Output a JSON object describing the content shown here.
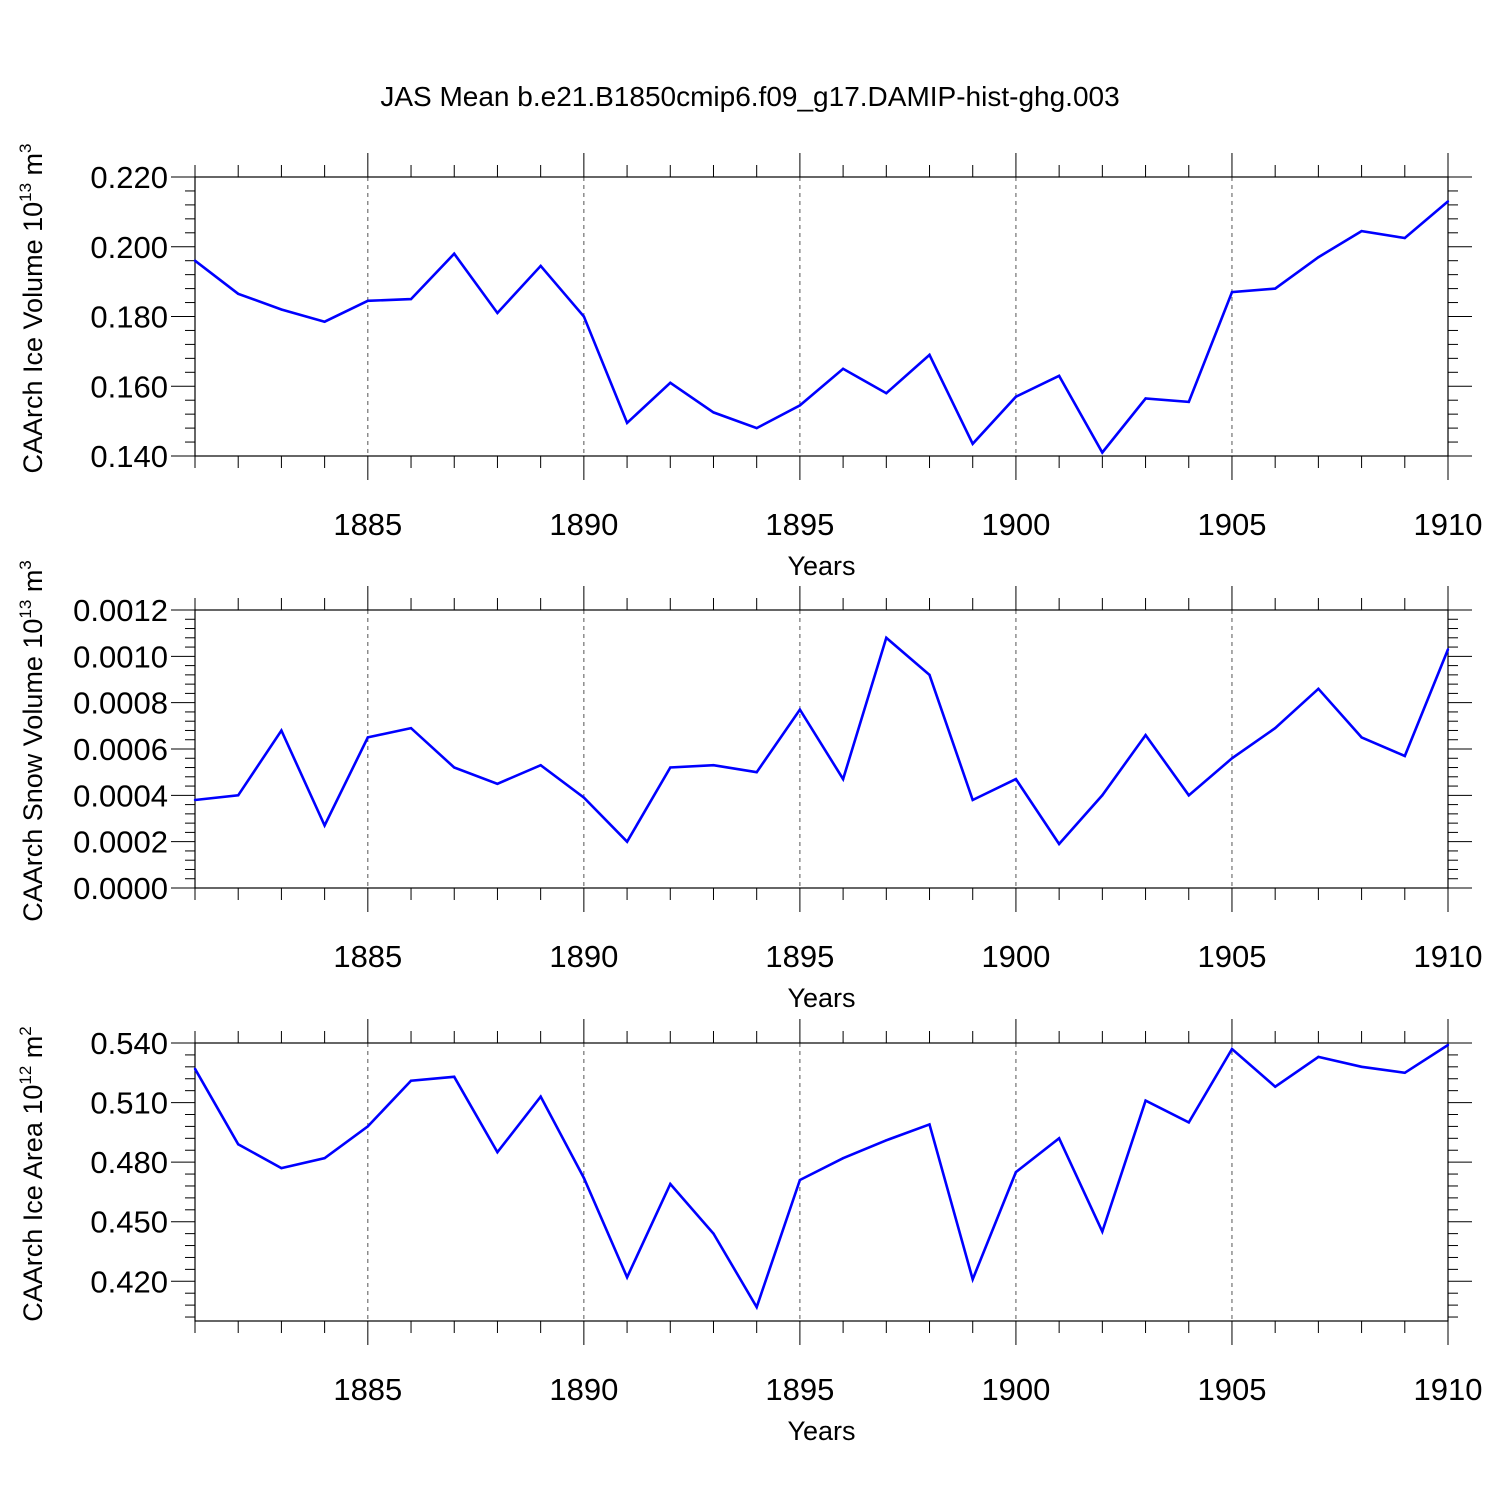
{
  "title": "JAS Mean b.e21.B1850cmip6.f09_g17.DAMIP-hist-ghg.003",
  "colors": {
    "line": "#0000ff",
    "axis": "#000000",
    "grid": "#555555"
  },
  "chart_data": [
    {
      "type": "line",
      "ylabel_main": "CAArch Ice Volume 10",
      "ylabel_sup1": "13",
      "ylabel_unit": " m",
      "ylabel_sup2": "3",
      "xlabel": "Years",
      "xlim": [
        1881,
        1910
      ],
      "ylim": [
        0.14,
        0.22
      ],
      "yticks": [
        0.14,
        0.16,
        0.18,
        0.2,
        0.22
      ],
      "ytick_labels": [
        "0.140",
        "0.160",
        "0.180",
        "0.200",
        "0.220"
      ],
      "xticks": [
        1885,
        1890,
        1895,
        1900,
        1905,
        1910
      ],
      "xtick_labels": [
        "1885",
        "1890",
        "1895",
        "1900",
        "1905",
        "1910"
      ],
      "grid": "vertical dashed at major x ticks",
      "x": [
        1881,
        1882,
        1883,
        1884,
        1885,
        1886,
        1887,
        1888,
        1889,
        1890,
        1891,
        1892,
        1893,
        1894,
        1895,
        1896,
        1897,
        1898,
        1899,
        1900,
        1901,
        1902,
        1903,
        1904,
        1905,
        1906,
        1907,
        1908,
        1909,
        1910
      ],
      "values": [
        0.196,
        0.1865,
        0.182,
        0.1785,
        0.1845,
        0.185,
        0.198,
        0.181,
        0.1945,
        0.18,
        0.1495,
        0.161,
        0.1525,
        0.148,
        0.1545,
        0.165,
        0.158,
        0.169,
        0.1435,
        0.157,
        0.163,
        0.141,
        0.1565,
        0.1555,
        0.187,
        0.188,
        0.197,
        0.2045,
        0.2025,
        0.213
      ]
    },
    {
      "type": "line",
      "ylabel_main": "CAArch Snow Volume 10",
      "ylabel_sup1": "13",
      "ylabel_unit": " m",
      "ylabel_sup2": "3",
      "xlabel": "Years",
      "xlim": [
        1881,
        1910
      ],
      "ylim": [
        0.0,
        0.0012
      ],
      "yticks": [
        0.0,
        0.0002,
        0.0004,
        0.0006,
        0.0008,
        0.001,
        0.0012
      ],
      "ytick_labels": [
        "0.0000",
        "0.0002",
        "0.0004",
        "0.0006",
        "0.0008",
        "0.0010",
        "0.0012"
      ],
      "xticks": [
        1885,
        1890,
        1895,
        1900,
        1905,
        1910
      ],
      "xtick_labels": [
        "1885",
        "1890",
        "1895",
        "1900",
        "1905",
        "1910"
      ],
      "grid": "vertical dashed at major x ticks",
      "x": [
        1881,
        1882,
        1883,
        1884,
        1885,
        1886,
        1887,
        1888,
        1889,
        1890,
        1891,
        1892,
        1893,
        1894,
        1895,
        1896,
        1897,
        1898,
        1899,
        1900,
        1901,
        1902,
        1903,
        1904,
        1905,
        1906,
        1907,
        1908,
        1909,
        1910
      ],
      "values": [
        0.00038,
        0.0004,
        0.00068,
        0.00027,
        0.00065,
        0.00069,
        0.00052,
        0.00045,
        0.00053,
        0.00039,
        0.0002,
        0.00052,
        0.00053,
        0.0005,
        0.00077,
        0.00047,
        0.00108,
        0.00092,
        0.00038,
        0.00047,
        0.00019,
        0.0004,
        0.00066,
        0.0004,
        0.00056,
        0.00069,
        0.00086,
        0.00065,
        0.00057,
        0.00103
      ]
    },
    {
      "type": "line",
      "ylabel_main": "CAArch Ice Area 10",
      "ylabel_sup1": "12",
      "ylabel_unit": " m",
      "ylabel_sup2": "2",
      "xlabel": "Years",
      "xlim": [
        1881,
        1910
      ],
      "ylim": [
        0.4,
        0.54
      ],
      "yticks": [
        0.42,
        0.45,
        0.48,
        0.51,
        0.54
      ],
      "ytick_labels": [
        "0.420",
        "0.450",
        "0.480",
        "0.510",
        "0.540"
      ],
      "xticks": [
        1885,
        1890,
        1895,
        1900,
        1905,
        1910
      ],
      "xtick_labels": [
        "1885",
        "1890",
        "1895",
        "1900",
        "1905",
        "1910"
      ],
      "grid": "vertical dashed at major x ticks",
      "x": [
        1881,
        1882,
        1883,
        1884,
        1885,
        1886,
        1887,
        1888,
        1889,
        1890,
        1891,
        1892,
        1893,
        1894,
        1895,
        1896,
        1897,
        1898,
        1899,
        1900,
        1901,
        1902,
        1903,
        1904,
        1905,
        1906,
        1907,
        1908,
        1909,
        1910
      ],
      "values": [
        0.527,
        0.489,
        0.477,
        0.482,
        0.498,
        0.521,
        0.523,
        0.485,
        0.513,
        0.472,
        0.422,
        0.469,
        0.444,
        0.407,
        0.471,
        0.482,
        0.491,
        0.499,
        0.421,
        0.475,
        0.492,
        0.445,
        0.511,
        0.5,
        0.537,
        0.518,
        0.533,
        0.528,
        0.525,
        0.539
      ]
    }
  ]
}
